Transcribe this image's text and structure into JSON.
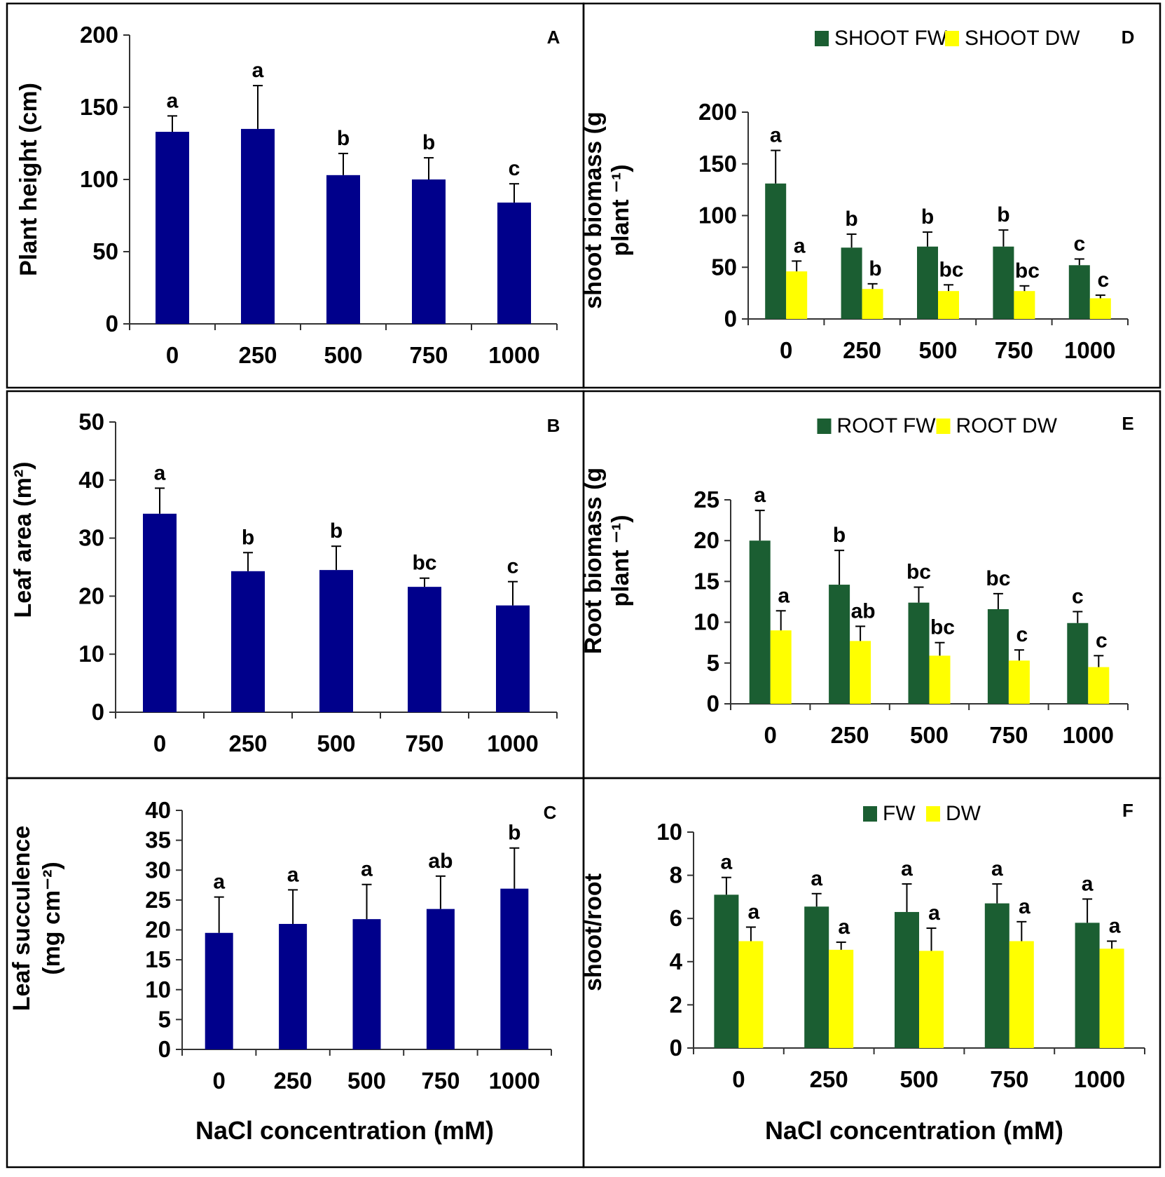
{
  "colors": {
    "blue": "#00008B",
    "green": "#1B5E32",
    "yellow": "#FFFF00"
  },
  "chart_data": [
    {
      "id": "A",
      "type": "bar",
      "categories": [
        "0",
        "250",
        "500",
        "750",
        "1000"
      ],
      "ylim": [
        0,
        200
      ],
      "yticks": [
        0,
        50,
        100,
        150,
        200
      ],
      "ylabel": "Plant height (cm)",
      "ylabel2": "",
      "xlabel": "",
      "legend": null,
      "series": [
        {
          "name": "",
          "color": "#00008B",
          "values": [
            133,
            135,
            103,
            100,
            84
          ],
          "errors": [
            11,
            30,
            15,
            15,
            13
          ],
          "sig": [
            "a",
            "a",
            "b",
            "b",
            "c"
          ]
        }
      ]
    },
    {
      "id": "B",
      "type": "bar",
      "categories": [
        "0",
        "250",
        "500",
        "750",
        "1000"
      ],
      "ylim": [
        0,
        50
      ],
      "yticks": [
        0,
        10,
        20,
        30,
        40,
        50
      ],
      "ylabel": "Leaf area (m²)",
      "ylabel2": "",
      "xlabel": "",
      "legend": null,
      "series": [
        {
          "name": "",
          "color": "#00008B",
          "values": [
            34.2,
            24.3,
            24.5,
            21.6,
            18.4
          ],
          "errors": [
            4.4,
            3.2,
            4.1,
            1.5,
            4.1
          ],
          "sig": [
            "a",
            "b",
            "b",
            "bc",
            "c"
          ]
        }
      ]
    },
    {
      "id": "C",
      "type": "bar",
      "categories": [
        "0",
        "250",
        "500",
        "750",
        "1000"
      ],
      "ylim": [
        0,
        40
      ],
      "yticks": [
        0,
        5,
        10,
        15,
        20,
        25,
        30,
        35,
        40
      ],
      "ylabel": "Leaf succulence",
      "ylabel2": "(mg cm⁻²)",
      "xlabel": "NaCl concentration (mM)",
      "legend": null,
      "series": [
        {
          "name": "",
          "color": "#00008B",
          "values": [
            19.5,
            21,
            21.8,
            23.5,
            26.9
          ],
          "errors": [
            6,
            5.7,
            5.8,
            5.5,
            6.8
          ],
          "sig": [
            "a",
            "a",
            "a",
            "ab",
            "b"
          ]
        }
      ]
    },
    {
      "id": "D",
      "type": "bar",
      "categories": [
        "0",
        "250",
        "500",
        "750",
        "1000"
      ],
      "ylim": [
        0,
        200
      ],
      "yticks": [
        0,
        50,
        100,
        150,
        200
      ],
      "ylabel": "shoot biomass (g",
      "ylabel2": "plant ⁻¹)",
      "xlabel": "",
      "legend": "top-center",
      "series": [
        {
          "name": "SHOOT FW",
          "color": "#1B5E32",
          "values": [
            131,
            69,
            70,
            70,
            52
          ],
          "errors": [
            32,
            13,
            14,
            16,
            6
          ],
          "sig": [
            "a",
            "b",
            "b",
            "b",
            "c"
          ]
        },
        {
          "name": "SHOOT DW",
          "color": "#FFFF00",
          "values": [
            46,
            29,
            27,
            27,
            20
          ],
          "errors": [
            10,
            5,
            6,
            5,
            3
          ],
          "sig": [
            "a",
            "b",
            "bc",
            "bc",
            "c"
          ]
        }
      ]
    },
    {
      "id": "E",
      "type": "bar",
      "categories": [
        "0",
        "250",
        "500",
        "750",
        "1000"
      ],
      "ylim": [
        0,
        25
      ],
      "yticks": [
        0,
        5,
        10,
        15,
        20,
        25
      ],
      "ylabel": "Root biomass (g",
      "ylabel2": "plant ⁻¹)",
      "xlabel": "",
      "legend": "top-center",
      "series": [
        {
          "name": "ROOT FW",
          "color": "#1B5E32",
          "values": [
            20,
            14.6,
            12.4,
            11.6,
            9.9
          ],
          "errors": [
            3.7,
            4.2,
            1.9,
            1.9,
            1.4
          ],
          "sig": [
            "a",
            "b",
            "bc",
            "bc",
            "c"
          ]
        },
        {
          "name": "ROOT DW",
          "color": "#FFFF00",
          "values": [
            9,
            7.7,
            5.9,
            5.3,
            4.5
          ],
          "errors": [
            2.4,
            1.8,
            1.6,
            1.3,
            1.4
          ],
          "sig": [
            "a",
            "ab",
            "bc",
            "c",
            "c"
          ]
        }
      ]
    },
    {
      "id": "F",
      "type": "bar",
      "categories": [
        "0",
        "250",
        "500",
        "750",
        "1000"
      ],
      "ylim": [
        0,
        10
      ],
      "yticks": [
        0,
        2,
        4,
        6,
        8,
        10
      ],
      "ylabel": "shoot/root",
      "ylabel2": "",
      "xlabel": "NaCl concentration (mM)",
      "legend": "top-center",
      "series": [
        {
          "name": "FW",
          "color": "#1B5E32",
          "values": [
            7.1,
            6.55,
            6.3,
            6.7,
            5.8
          ],
          "errors": [
            0.8,
            0.6,
            1.3,
            0.9,
            1.1
          ],
          "sig": [
            "a",
            "a",
            "a",
            "a",
            "a"
          ]
        },
        {
          "name": "DW",
          "color": "#FFFF00",
          "values": [
            4.95,
            4.55,
            4.5,
            4.95,
            4.6
          ],
          "errors": [
            0.65,
            0.35,
            1.05,
            0.9,
            0.35
          ],
          "sig": [
            "a",
            "a",
            "a",
            "a",
            "a"
          ]
        }
      ]
    }
  ]
}
